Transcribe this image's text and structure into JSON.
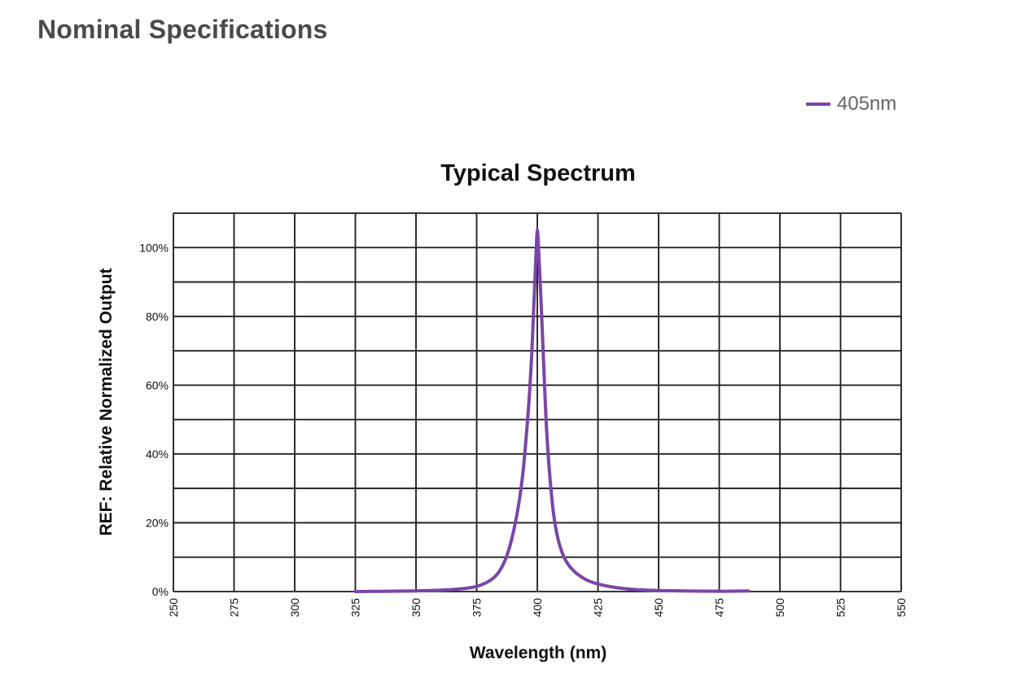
{
  "page": {
    "section_title": "Nominal Specifications"
  },
  "colors": {
    "series": "#7a45a8",
    "grid": "#1a1a1a"
  },
  "chart_data": {
    "type": "line",
    "title": "Typical Spectrum",
    "xlabel": "Wavelength (nm)",
    "ylabel": "REF: Relative Normalized Output",
    "xlim": [
      250,
      550
    ],
    "ylim": [
      0,
      110
    ],
    "x_ticks": [
      250,
      275,
      300,
      325,
      350,
      375,
      400,
      425,
      450,
      475,
      500,
      525,
      550
    ],
    "x_tick_labels": [
      "250",
      "275",
      "300",
      "325",
      "350",
      "375",
      "400",
      "425",
      "450",
      "475",
      "500",
      "525",
      "550"
    ],
    "y_ticks": [
      0,
      20,
      40,
      60,
      80,
      100
    ],
    "y_tick_labels": [
      "0%",
      "20%",
      "40%",
      "60%",
      "80%",
      "100%"
    ],
    "grid": true,
    "legend_position": "top-right",
    "series": [
      {
        "name": "405nm",
        "x": [
          325,
          350,
          365,
          375,
          382,
          386,
          389,
          392,
          394,
          396,
          397.5,
          398.5,
          399.3,
          400,
          400.7,
          401.5,
          402.5,
          404,
          406,
          408,
          411,
          415,
          420,
          425,
          432,
          440,
          450,
          460,
          475,
          487
        ],
        "y": [
          0,
          0.2,
          0.6,
          1.5,
          4,
          8,
          14,
          24,
          34,
          50,
          66,
          82,
          95,
          105,
          97,
          85,
          68,
          45,
          27,
          17,
          10,
          6,
          3.5,
          2.2,
          1.2,
          0.6,
          0.3,
          0.2,
          0.1,
          0.2
        ]
      }
    ]
  }
}
